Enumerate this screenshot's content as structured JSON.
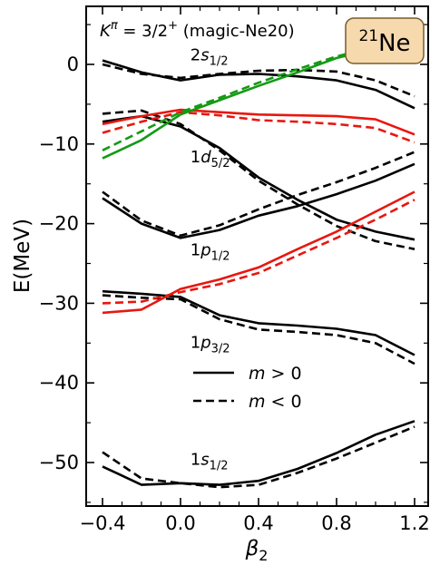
{
  "chart_data": {
    "type": "line",
    "title": "Kπ = 3/2+ (magic-Ne20)",
    "title_parts": {
      "K": "K",
      "sup": "π",
      "rest": " = 3/2",
      "plus": "+",
      "tail": " (magic-Ne20)"
    },
    "badge": {
      "mass": "21",
      "element": "Ne",
      "fill": "#f7d9ae",
      "stroke": "#7a5a2a"
    },
    "xlabel": {
      "main": "β",
      "sub": "2"
    },
    "ylabel": "E(MeV)",
    "xlim": [
      -0.45,
      1.25
    ],
    "ylim": [
      -56,
      8
    ],
    "xticks": [
      -0.4,
      0.0,
      0.4,
      0.8,
      1.2
    ],
    "xtick_labels": [
      "−0.4",
      "0.0",
      "0.4",
      "0.8",
      "1.2"
    ],
    "yticks": [
      0,
      -10,
      -20,
      -30,
      -40,
      -50
    ],
    "ytick_labels": [
      "0",
      "−10",
      "−20",
      "−30",
      "−40",
      "−50"
    ],
    "legend": {
      "position": "center-right",
      "entries": [
        {
          "style": "solid",
          "prefix": "m",
          "rest": " > 0"
        },
        {
          "style": "dashed",
          "prefix": "m",
          "rest": " < 0"
        }
      ]
    },
    "level_labels": [
      {
        "n": "2",
        "l": "s",
        "j": "1/2",
        "x": 0.05,
        "y": 0.5
      },
      {
        "n": "1",
        "l": "d",
        "j": "5/2",
        "x": 0.05,
        "y": -12.3
      },
      {
        "n": "1",
        "l": "p",
        "j": "1/2",
        "x": 0.05,
        "y": -24.0
      },
      {
        "n": "1",
        "l": "p",
        "j": "3/2",
        "x": 0.05,
        "y": -35.6
      },
      {
        "n": "1",
        "l": "s",
        "j": "1/2",
        "x": 0.05,
        "y": -50.3
      }
    ],
    "x": [
      -0.4,
      -0.2,
      0.0,
      0.2,
      0.4,
      0.6,
      0.8,
      1.0,
      1.2
    ],
    "colors": {
      "black": "#000000",
      "red": "#e8170f",
      "green": "#139a13"
    },
    "series": [
      {
        "color": "black",
        "dash": false,
        "values": [
          0.5,
          -1.0,
          -2.0,
          -1.3,
          -1.2,
          -1.5,
          -2.0,
          -3.2,
          -5.5
        ]
      },
      {
        "color": "black",
        "dash": true,
        "values": [
          0.0,
          -1.2,
          -1.7,
          -1.2,
          -0.8,
          -0.7,
          -0.9,
          -2.0,
          -4.0
        ]
      },
      {
        "color": "black",
        "dash": false,
        "values": [
          -7.2,
          -6.5,
          -7.8,
          -10.5,
          -14.2,
          -17.0,
          -19.5,
          -21.0,
          -22.0
        ]
      },
      {
        "color": "black",
        "dash": true,
        "values": [
          -6.2,
          -5.8,
          -7.5,
          -10.8,
          -14.6,
          -17.6,
          -20.3,
          -22.2,
          -23.2
        ]
      },
      {
        "color": "black",
        "dash": false,
        "values": [
          -16.8,
          -20.0,
          -21.8,
          -20.8,
          -19.0,
          -17.8,
          -16.3,
          -14.6,
          -12.5
        ]
      },
      {
        "color": "black",
        "dash": true,
        "values": [
          -16.0,
          -19.6,
          -21.5,
          -20.2,
          -18.2,
          -16.4,
          -14.8,
          -13.0,
          -11.0
        ]
      },
      {
        "color": "black",
        "dash": false,
        "values": [
          -28.5,
          -28.8,
          -29.2,
          -31.5,
          -32.5,
          -32.8,
          -33.2,
          -34.0,
          -36.5
        ]
      },
      {
        "color": "black",
        "dash": true,
        "values": [
          -29.0,
          -29.3,
          -29.5,
          -32.0,
          -33.3,
          -33.6,
          -34.0,
          -35.0,
          -37.6
        ]
      },
      {
        "color": "black",
        "dash": false,
        "values": [
          -50.5,
          -52.8,
          -52.6,
          -52.8,
          -52.3,
          -50.8,
          -48.8,
          -46.5,
          -44.8
        ]
      },
      {
        "color": "black",
        "dash": true,
        "values": [
          -48.7,
          -52.0,
          -52.6,
          -53.1,
          -52.8,
          -51.3,
          -49.5,
          -47.5,
          -45.5
        ]
      },
      {
        "color": "red",
        "dash": false,
        "values": [
          -7.5,
          -6.5,
          -5.7,
          -6.0,
          -6.3,
          -6.4,
          -6.5,
          -6.9,
          -8.8
        ]
      },
      {
        "color": "red",
        "dash": true,
        "values": [
          -8.6,
          -7.2,
          -6.0,
          -6.4,
          -7.0,
          -7.2,
          -7.5,
          -8.0,
          -9.8
        ]
      },
      {
        "color": "red",
        "dash": false,
        "values": [
          -31.2,
          -30.8,
          -28.2,
          -27.0,
          -25.5,
          -23.2,
          -21.0,
          -18.5,
          -16.0
        ]
      },
      {
        "color": "red",
        "dash": true,
        "values": [
          -30.0,
          -29.8,
          -28.6,
          -27.6,
          -26.2,
          -24.0,
          -21.8,
          -19.5,
          -17.0
        ]
      },
      {
        "color": "green",
        "dash": false,
        "values": [
          -11.8,
          -9.5,
          -6.3,
          -4.5,
          -2.7,
          -1.0,
          0.8,
          2.0,
          2.6
        ]
      },
      {
        "color": "green",
        "dash": true,
        "values": [
          -10.8,
          -8.4,
          -6.0,
          -4.2,
          -2.3,
          -0.6,
          1.0,
          2.2,
          2.8
        ]
      }
    ]
  }
}
